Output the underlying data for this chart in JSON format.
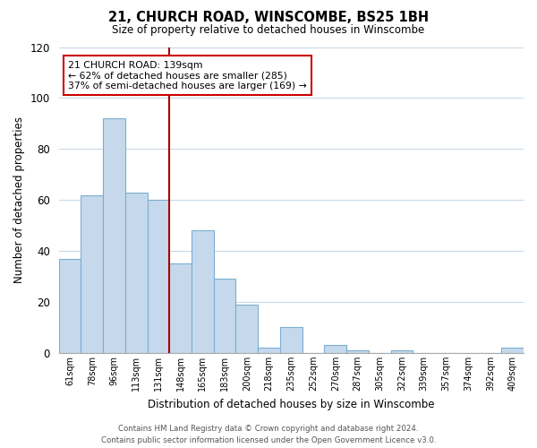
{
  "title": "21, CHURCH ROAD, WINSCOMBE, BS25 1BH",
  "subtitle": "Size of property relative to detached houses in Winscombe",
  "xlabel": "Distribution of detached houses by size in Winscombe",
  "ylabel": "Number of detached properties",
  "bar_color": "#c6d9ec",
  "bar_edge_color": "#7aafcf",
  "categories": [
    "61sqm",
    "78sqm",
    "96sqm",
    "113sqm",
    "131sqm",
    "148sqm",
    "165sqm",
    "183sqm",
    "200sqm",
    "218sqm",
    "235sqm",
    "252sqm",
    "270sqm",
    "287sqm",
    "305sqm",
    "322sqm",
    "339sqm",
    "357sqm",
    "374sqm",
    "392sqm",
    "409sqm"
  ],
  "values": [
    37,
    62,
    92,
    63,
    60,
    35,
    48,
    29,
    19,
    2,
    10,
    0,
    3,
    1,
    0,
    1,
    0,
    0,
    0,
    0,
    2
  ],
  "ylim": [
    0,
    120
  ],
  "yticks": [
    0,
    20,
    40,
    60,
    80,
    100,
    120
  ],
  "vline_x": 4.5,
  "vline_color": "#aa0000",
  "annotation_text": "21 CHURCH ROAD: 139sqm\n← 62% of detached houses are smaller (285)\n37% of semi-detached houses are larger (169) →",
  "annotation_box_color": "#ffffff",
  "annotation_box_edge_color": "#cc0000",
  "footer_line1": "Contains HM Land Registry data © Crown copyright and database right 2024.",
  "footer_line2": "Contains public sector information licensed under the Open Government Licence v3.0.",
  "background_color": "#ffffff",
  "grid_color": "#c8d8e8"
}
